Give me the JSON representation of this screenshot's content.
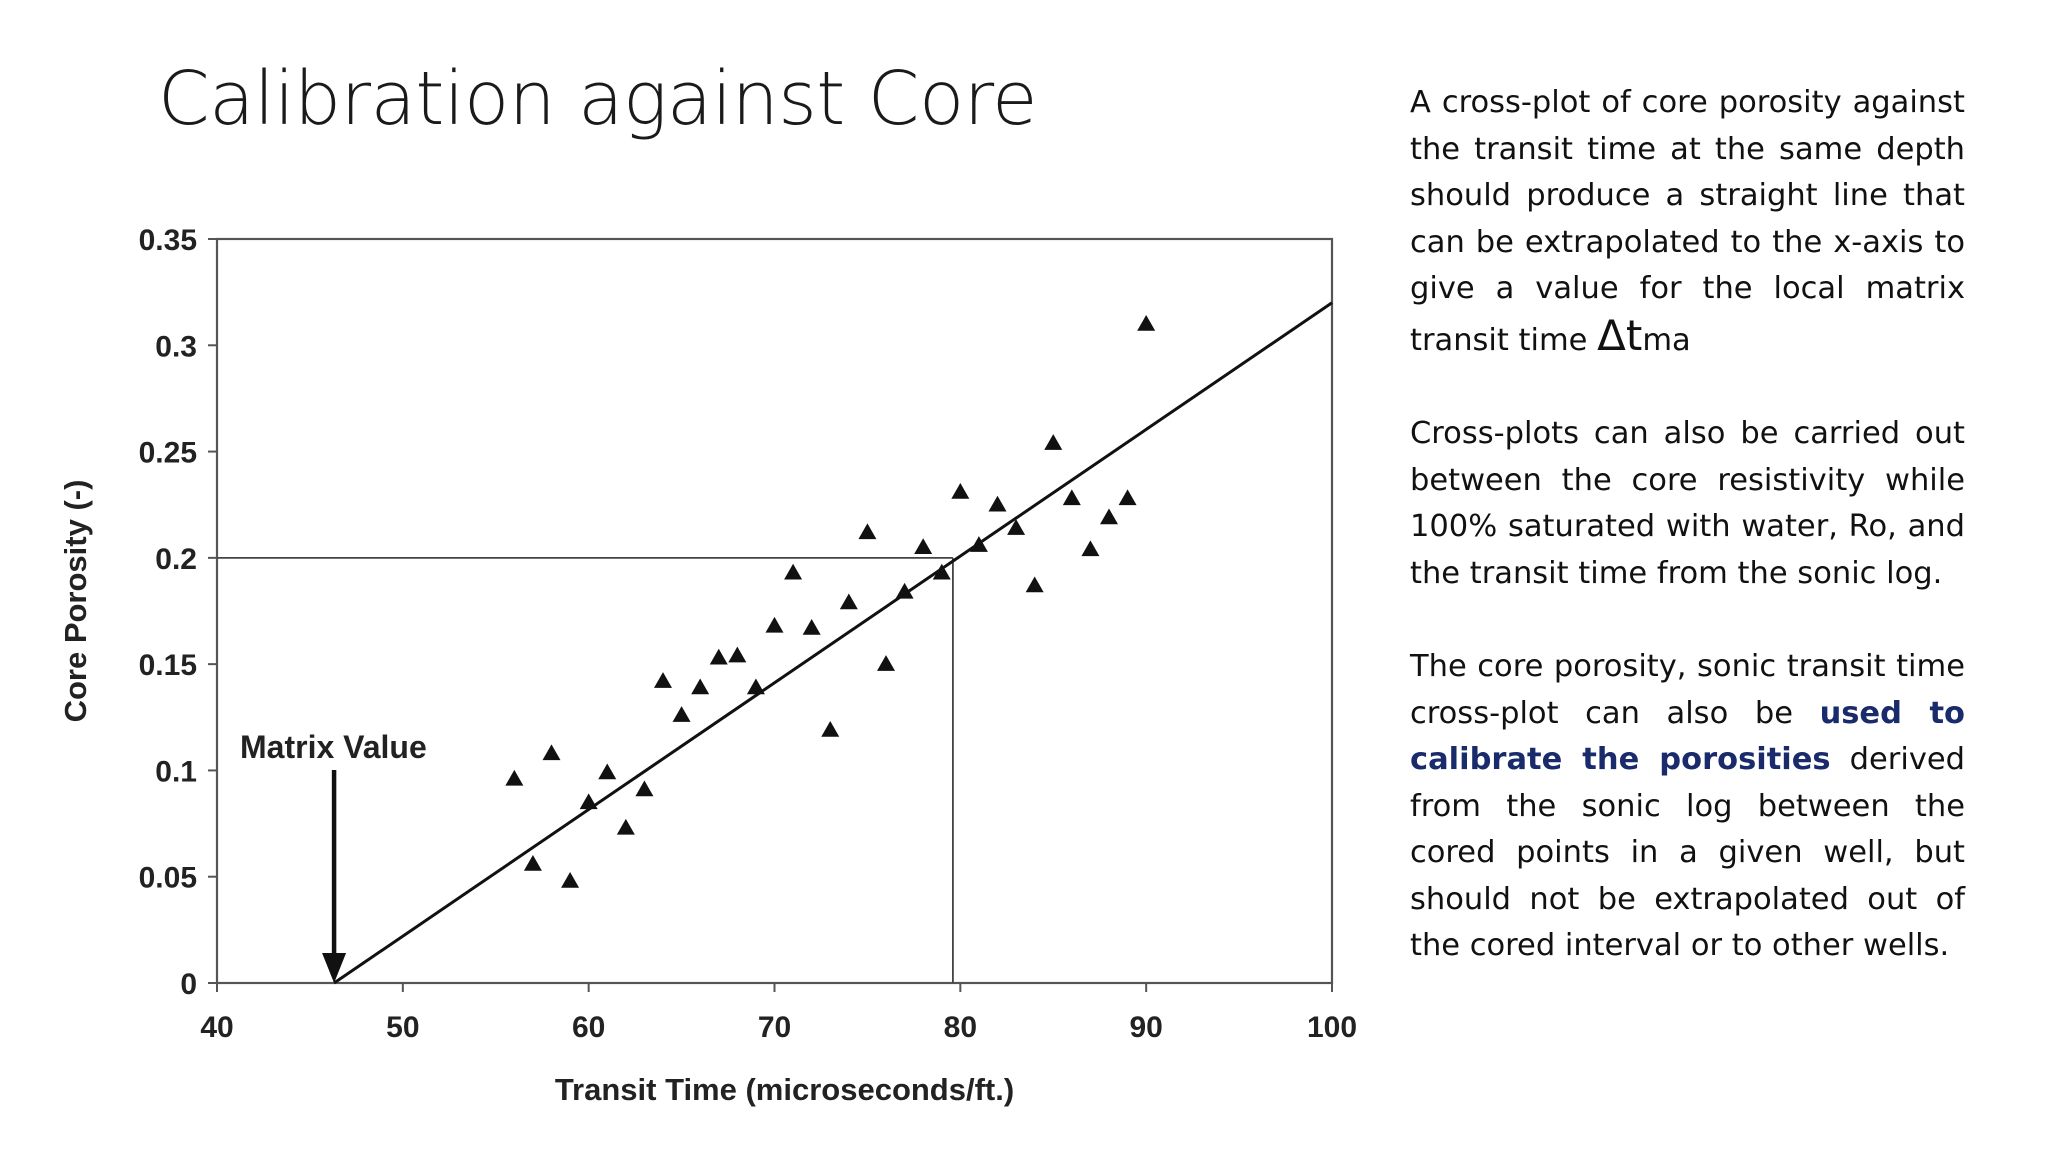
{
  "slide": {
    "title": "Calibration against Core"
  },
  "text": {
    "p1_main": "A cross-plot of core porosity against the transit time at the same depth should produce a straight line that can be extrapolated to the x-axis to give a value for the local matrix transit time ",
    "p1_delta": "Δt",
    "p1_sub": "ma",
    "p2": "Cross-plots can also be carried out between the core resistivity while 100% saturated with water, Ro, and the transit time from the sonic log.",
    "p3_before": "The core porosity, sonic transit time cross-plot can also be ",
    "p3_emph": "used to calibrate the porosities",
    "p3_after": " derived from the sonic log between the cored points in a given well, but should not be extrapolated out of the cored interval or to other wells."
  },
  "colors": {
    "emphasis": "#1a2b6b",
    "ink": "#111111"
  },
  "chart_data": {
    "type": "scatter",
    "xlabel": "Transit Time (microseconds/ft.)",
    "ylabel": "Core Porosity (-)",
    "xlim": [
      40,
      100
    ],
    "ylim": [
      0,
      0.35
    ],
    "x_ticks": [
      40,
      50,
      60,
      70,
      80,
      90,
      100
    ],
    "y_ticks": [
      0,
      0.05,
      0.1,
      0.15,
      0.2,
      0.25,
      0.3,
      0.35
    ],
    "y_tick_labels": [
      "0",
      "0.05",
      "0.1",
      "0.15",
      "0.2",
      "0.25",
      "0.3",
      "0.35"
    ],
    "grid": false,
    "marker": "triangle",
    "points": [
      [
        56,
        0.096
      ],
      [
        57,
        0.056
      ],
      [
        58,
        0.108
      ],
      [
        59,
        0.048
      ],
      [
        60,
        0.085
      ],
      [
        61,
        0.099
      ],
      [
        62,
        0.073
      ],
      [
        63,
        0.091
      ],
      [
        64,
        0.142
      ],
      [
        65,
        0.126
      ],
      [
        66,
        0.139
      ],
      [
        67,
        0.153
      ],
      [
        68,
        0.154
      ],
      [
        69,
        0.139
      ],
      [
        70,
        0.168
      ],
      [
        71,
        0.193
      ],
      [
        72,
        0.167
      ],
      [
        73,
        0.119
      ],
      [
        74,
        0.179
      ],
      [
        75,
        0.212
      ],
      [
        76,
        0.15
      ],
      [
        77,
        0.184
      ],
      [
        78,
        0.205
      ],
      [
        79,
        0.193
      ],
      [
        80,
        0.231
      ],
      [
        81,
        0.206
      ],
      [
        82,
        0.225
      ],
      [
        83,
        0.214
      ],
      [
        84,
        0.187
      ],
      [
        85,
        0.254
      ],
      [
        86,
        0.228
      ],
      [
        87,
        0.204
      ],
      [
        88,
        0.219
      ],
      [
        89,
        0.228
      ],
      [
        90,
        0.31
      ]
    ],
    "trend_line": {
      "x": [
        46.3,
        100
      ],
      "y": [
        0,
        0.32
      ]
    },
    "reference_lines": {
      "y_value": 0.2,
      "x_value": 79.6
    },
    "annotation": {
      "text": "Matrix Value",
      "x": 46.3
    }
  }
}
